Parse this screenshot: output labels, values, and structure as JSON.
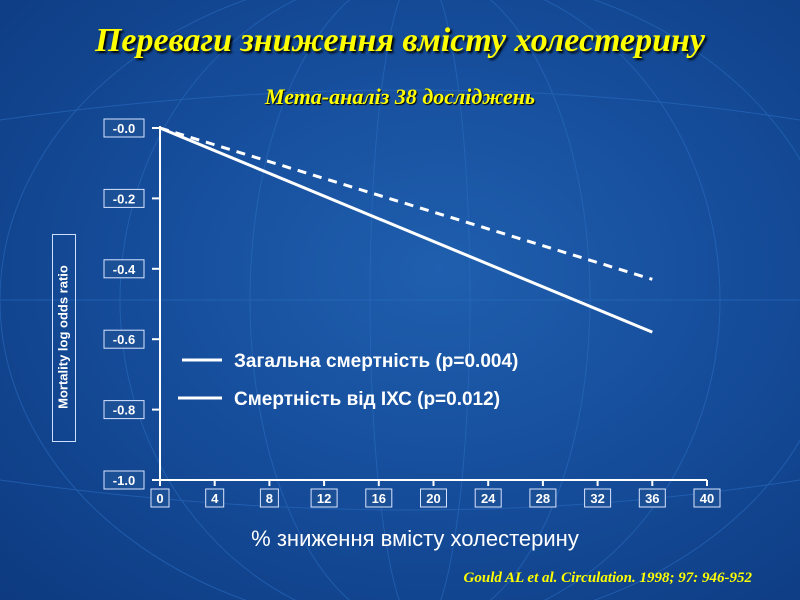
{
  "title": "Переваги зниження вмісту холестерину",
  "subtitle": "Мета-аналіз 38 досліджень",
  "citation": "Gould AL et al. Circulation. 1998; 97: 946-952",
  "chart_data": {
    "type": "line",
    "xlabel": "% зниження вмісту холестерину",
    "ylabel": "Mortality log odds ratio",
    "xlim": [
      0,
      40
    ],
    "ylim": [
      -1.0,
      0.0
    ],
    "x_ticks": [
      "0",
      "4",
      "8",
      "12",
      "16",
      "20",
      "24",
      "28",
      "32",
      "36",
      "40"
    ],
    "y_ticks": [
      "-0.0",
      "-0.2",
      "-0.4",
      "-0.6",
      "-0.8",
      "-1.0"
    ],
    "grid": false,
    "legend_position": "lower-left",
    "series": [
      {
        "name": "Загальна смертність  (p=0.004)",
        "style": "dashed",
        "color": "#ffffff",
        "x": [
          0,
          36
        ],
        "y": [
          0.0,
          -0.43
        ]
      },
      {
        "name": "Смертність від ІХС (p=0.012)",
        "style": "solid",
        "color": "#ffffff",
        "x": [
          0,
          36
        ],
        "y": [
          0.0,
          -0.58
        ]
      }
    ]
  },
  "colors": {
    "title": "#ffff00",
    "background": "#164e9c",
    "text": "#ffffff"
  }
}
